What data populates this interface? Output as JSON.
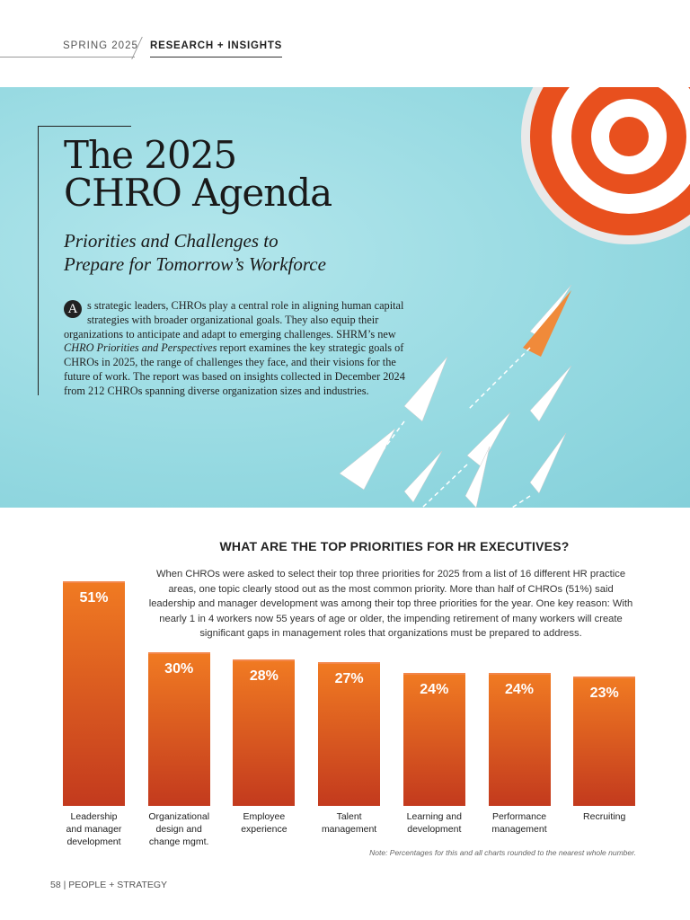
{
  "header": {
    "season": "SPRING 2025",
    "section": "RESEARCH + INSIGHTS"
  },
  "article": {
    "title_line1": "The 2025",
    "title_line2": "CHRO Agenda",
    "subtitle_line1": "Priorities and Challenges to",
    "subtitle_line2": "Prepare for Tomorrow’s Workforce",
    "dropcap": "A",
    "body_part1": "s strategic leaders, CHROs play a central role in aligning human capital strategies with broader organizational goals. They also equip their organizations to anticipate and adapt to emerging challenges. SHRM’s new ",
    "body_report": "CHRO Priorities and Perspectives",
    "body_part2": " report examines the key strategic goals of CHROs in 2025, the range of challenges they face, and their visions for the future of work. The report was based on insights collected in December 2024 from 212 CHROs spanning diverse organization sizes and industries."
  },
  "chart_data": {
    "type": "bar",
    "title": "WHAT ARE THE TOP PRIORITIES FOR HR EXECUTIVES?",
    "description": "When CHROs were asked to select their top three priorities for 2025 from a list of 16 different HR practice areas, one topic clearly stood out as the most common priority. More than half of CHROs (51%) said leadership and manager development was among their top three priorities for the year. One key reason: With nearly 1 in 4 workers now 55 years of age or older, the impending retirement of many workers will create significant gaps in management roles that organizations must be prepared to address.",
    "categories": [
      "Leadership\nand manager\ndevelopment",
      "Organizational\ndesign and\nchange mgmt.",
      "Employee\nexperience",
      "Talent\nmanagement",
      "Learning and\ndevelopment",
      "Performance\nmanagement",
      "Recruiting"
    ],
    "values": [
      51,
      30,
      28,
      27,
      24,
      24,
      23
    ],
    "value_labels": [
      "51%",
      "30%",
      "28%",
      "27%",
      "24%",
      "24%",
      "23%"
    ],
    "note": "Note: Percentages for this and all charts rounded to the nearest whole number.",
    "colors": {
      "bar_top": "#f07a22",
      "bar_bottom": "#c33a1e"
    }
  },
  "footer": {
    "page": "58",
    "publication": "PEOPLE + STRATEGY"
  }
}
